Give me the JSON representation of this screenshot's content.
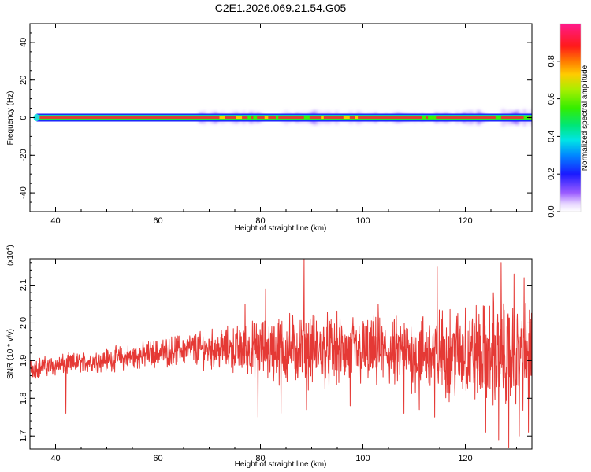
{
  "chart_data": [
    {
      "type": "heatmap",
      "title": "C2E1.2026.069.21.54.G05",
      "xlabel": "Height of straight line (km)",
      "ylabel": "Frequency (Hz)",
      "xlim": [
        35,
        133
      ],
      "ylim": [
        -50,
        50
      ],
      "x_ticks": [
        40,
        60,
        80,
        100,
        120
      ],
      "y_ticks": [
        40,
        20,
        0,
        -20,
        -40
      ],
      "band_center_hz": 0,
      "colorbar": {
        "label": "Normalized spectral amplitude",
        "range": [
          0.0,
          1.0
        ],
        "ticks": [
          0.0,
          0.2,
          0.4,
          0.6,
          0.8
        ]
      },
      "halo_segments_km": [
        [
          68,
          80,
          0.25
        ],
        [
          84,
          100,
          0.3
        ],
        [
          100,
          117,
          0.2
        ],
        [
          118,
          124,
          0.3
        ],
        [
          127,
          133,
          0.4
        ]
      ]
    },
    {
      "type": "line",
      "xlabel": "Height of straight line (km)",
      "ylabel": "SNR (10 * v/v)",
      "y_multiplier": "(x10^4)",
      "y_multiplier_base": "(x10",
      "y_multiplier_exp": "4",
      "y_multiplier_close": ")",
      "xlim": [
        35,
        133
      ],
      "ylim": [
        1.665,
        2.17
      ],
      "x_ticks": [
        40,
        60,
        80,
        100,
        120
      ],
      "y_ticks": [
        1.7,
        1.8,
        1.9,
        2.0,
        2.1
      ],
      "color": "#e53935",
      "envelope": [
        {
          "x": 35,
          "mean": 1.88,
          "amp": 0.02
        },
        {
          "x": 45,
          "mean": 1.895,
          "amp": 0.02
        },
        {
          "x": 55,
          "mean": 1.91,
          "amp": 0.025
        },
        {
          "x": 65,
          "mean": 1.93,
          "amp": 0.03
        },
        {
          "x": 75,
          "mean": 1.93,
          "amp": 0.045
        },
        {
          "x": 85,
          "mean": 1.93,
          "amp": 0.07
        },
        {
          "x": 95,
          "mean": 1.925,
          "amp": 0.07
        },
        {
          "x": 105,
          "mean": 1.92,
          "amp": 0.065
        },
        {
          "x": 115,
          "mean": 1.92,
          "amp": 0.085
        },
        {
          "x": 125,
          "mean": 1.915,
          "amp": 0.1
        },
        {
          "x": 133,
          "mean": 1.91,
          "amp": 0.1
        }
      ],
      "peaks": [
        {
          "x": 42,
          "y": 1.76
        },
        {
          "x": 77,
          "y": 2.05
        },
        {
          "x": 79.5,
          "y": 1.75
        },
        {
          "x": 81,
          "y": 2.09
        },
        {
          "x": 84,
          "y": 1.76
        },
        {
          "x": 88.5,
          "y": 2.17
        },
        {
          "x": 89,
          "y": 1.77
        },
        {
          "x": 97.5,
          "y": 1.78
        },
        {
          "x": 103,
          "y": 2.05
        },
        {
          "x": 108,
          "y": 1.76
        },
        {
          "x": 111,
          "y": 1.77
        },
        {
          "x": 114,
          "y": 1.75
        },
        {
          "x": 114.5,
          "y": 2.15
        },
        {
          "x": 120,
          "y": 2.04
        },
        {
          "x": 124,
          "y": 1.71
        },
        {
          "x": 125.5,
          "y": 2.08
        },
        {
          "x": 126.5,
          "y": 1.69
        },
        {
          "x": 127,
          "y": 2.16
        },
        {
          "x": 128.5,
          "y": 1.67
        },
        {
          "x": 129.5,
          "y": 2.13
        },
        {
          "x": 130.5,
          "y": 1.7
        },
        {
          "x": 131.5,
          "y": 2.12
        },
        {
          "x": 132.3,
          "y": 1.71
        }
      ]
    }
  ]
}
